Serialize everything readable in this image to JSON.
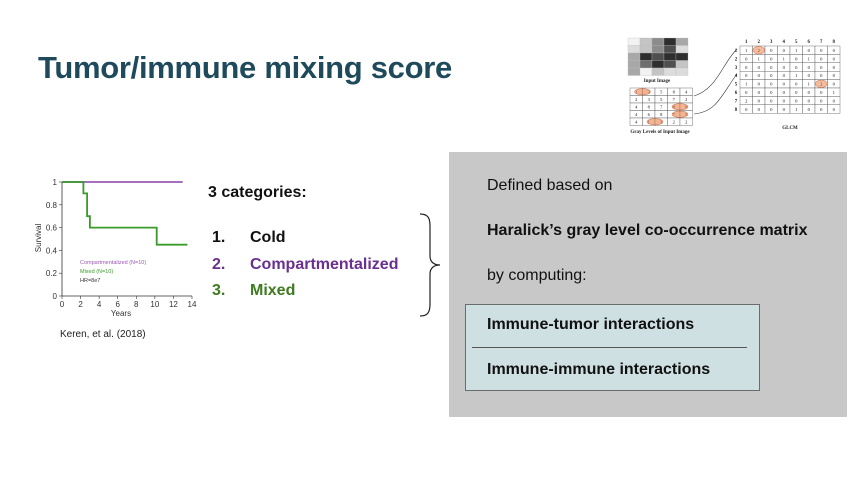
{
  "slide": {
    "title": "Tumor/immune mixing score",
    "citation": "Keren, et al. (2018)"
  },
  "glcm_figure": {
    "input_image_label": "Input Image",
    "gray_levels_label": "Gray Levels of Input Image",
    "glcm_label": "GLCM",
    "gray_levels": [
      [
        1,
        3,
        5,
        8,
        4
      ],
      [
        2,
        3,
        5,
        7,
        2
      ],
      [
        4,
        8,
        7,
        8,
        8
      ],
      [
        4,
        6,
        8,
        7,
        3
      ],
      [
        4,
        1,
        3,
        2,
        2
      ]
    ],
    "matrix_headers": [
      "1",
      "2",
      "3",
      "4",
      "5",
      "6",
      "7",
      "8"
    ],
    "matrix": [
      [
        1,
        2,
        0,
        0,
        1,
        0,
        0,
        0
      ],
      [
        0,
        1,
        0,
        1,
        0,
        1,
        0,
        0
      ],
      [
        0,
        0,
        0,
        0,
        0,
        0,
        0,
        0
      ],
      [
        0,
        0,
        0,
        0,
        1,
        0,
        0,
        0
      ],
      [
        1,
        0,
        0,
        0,
        0,
        1,
        2,
        0
      ],
      [
        0,
        0,
        0,
        0,
        0,
        0,
        0,
        1
      ],
      [
        2,
        0,
        0,
        0,
        0,
        0,
        0,
        0
      ],
      [
        0,
        0,
        0,
        0,
        1,
        0,
        0,
        0
      ]
    ]
  },
  "chart_data": {
    "type": "line",
    "title": "",
    "xlabel": "Years",
    "ylabel": "Survival",
    "xlim": [
      0,
      14
    ],
    "ylim": [
      0,
      1
    ],
    "xticks": [
      "0",
      "2",
      "4",
      "6",
      "8",
      "10",
      "12",
      "14"
    ],
    "yticks": [
      "0",
      "0.2",
      "0.4",
      "0.6",
      "0.8",
      "1"
    ],
    "series": [
      {
        "name": "Compartmentalized (N=10)",
        "color": "#9b59b6",
        "x": [
          0,
          13
        ],
        "y": [
          1,
          1
        ]
      },
      {
        "name": "Mixed (N=10)",
        "color": "#3a9a2a",
        "x": [
          0,
          2.3,
          2.3,
          2.7,
          2.7,
          3.0,
          3.0,
          10.2,
          10.2,
          13.5
        ],
        "y": [
          1,
          1,
          0.9,
          0.9,
          0.7,
          0.7,
          0.6,
          0.6,
          0.45,
          0.45
        ]
      }
    ],
    "annotation": "HR=8e7",
    "legend": "bottom-left"
  },
  "categories": {
    "heading": "3 categories:",
    "items": [
      {
        "num": "1.",
        "label": "Cold",
        "color": "#111111"
      },
      {
        "num": "2.",
        "label": "Compartmentalized",
        "color": "#6a2f8f"
      },
      {
        "num": "3.",
        "label": "Mixed",
        "color": "#3e7a1f"
      }
    ]
  },
  "panel": {
    "line1": "Defined based on",
    "line2": "Haralick’s gray level co-occurrence matrix",
    "line3": "by computing:",
    "interactions": [
      "Immune-tumor interactions",
      "Immune-immune interactions"
    ]
  }
}
